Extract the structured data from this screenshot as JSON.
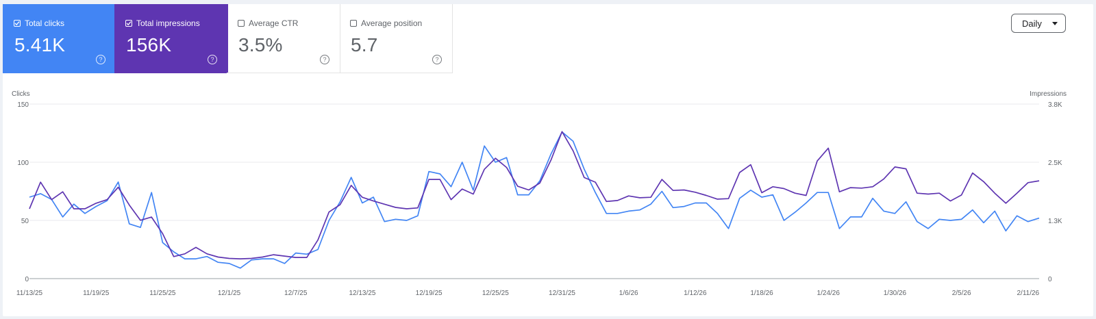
{
  "metrics": [
    {
      "label": "Total clicks",
      "value": "5.41K",
      "checked": true,
      "color": "#4285f4"
    },
    {
      "label": "Total impressions",
      "value": "156K",
      "checked": true,
      "color": "#5e35b1"
    },
    {
      "label": "Average CTR",
      "value": "3.5%",
      "checked": false
    },
    {
      "label": "Average position",
      "value": "5.7",
      "checked": false
    }
  ],
  "granularity": {
    "label": "Daily",
    "icon": "dropdown-caret-icon"
  },
  "help_icon": "help-circle-icon",
  "chart_data": {
    "type": "line",
    "left_axis": {
      "label": "Clicks",
      "ticks": [
        "150",
        "100",
        "50",
        "0"
      ],
      "range": [
        0,
        150
      ]
    },
    "right_axis": {
      "label": "Impressions",
      "ticks": [
        "3.8K",
        "2.5K",
        "1.3K",
        "0"
      ],
      "range": [
        0,
        3800
      ]
    },
    "x_tick_labels": [
      "11/13/25",
      "11/19/25",
      "11/25/25",
      "12/1/25",
      "12/7/25",
      "12/13/25",
      "12/19/25",
      "12/25/25",
      "12/31/25",
      "1/6/26",
      "1/12/26",
      "1/18/26",
      "1/24/26",
      "1/30/26",
      "2/5/26",
      "2/11/26"
    ],
    "series": [
      {
        "name": "Clicks",
        "color": "#4285f4",
        "axis": "left",
        "values": [
          70,
          73,
          68,
          53,
          64,
          56,
          62,
          67,
          83,
          47,
          44,
          74,
          31,
          23,
          17,
          17,
          19,
          14,
          13,
          9,
          16,
          17,
          17,
          13,
          22,
          21,
          25,
          50,
          66,
          87,
          65,
          70,
          49,
          51,
          50,
          54,
          92,
          90,
          79,
          100,
          76,
          114,
          100,
          104,
          72,
          72,
          84,
          107,
          126,
          118,
          94,
          74,
          56,
          56,
          58,
          59,
          64,
          75,
          61,
          62,
          65,
          65,
          56,
          43,
          69,
          76,
          70,
          72,
          50,
          57,
          65,
          74,
          74,
          43,
          53,
          53,
          69,
          58,
          56,
          66,
          49,
          43,
          51,
          50,
          51,
          59,
          48,
          58,
          41,
          54,
          49,
          52
        ],
        "note": "Daily clicks; points estimated from the plot"
      },
      {
        "name": "Impressions",
        "color": "#5e35b1",
        "axis": "right",
        "values": [
          1520,
          2100,
          1720,
          1890,
          1520,
          1520,
          1640,
          1720,
          1990,
          1600,
          1270,
          1340,
          980,
          480,
          540,
          680,
          540,
          470,
          440,
          430,
          440,
          470,
          520,
          490,
          460,
          460,
          840,
          1450,
          1610,
          2030,
          1770,
          1690,
          1620,
          1550,
          1520,
          1540,
          2160,
          2160,
          1720,
          1950,
          1840,
          2380,
          2620,
          2420,
          2010,
          1930,
          2080,
          2580,
          3200,
          2780,
          2200,
          2100,
          1680,
          1700,
          1800,
          1760,
          1770,
          2160,
          1920,
          1930,
          1880,
          1810,
          1730,
          1740,
          2310,
          2480,
          1870,
          2000,
          1960,
          1860,
          1810,
          2560,
          2840,
          1890,
          1980,
          1970,
          2000,
          2170,
          2430,
          2390,
          1860,
          1840,
          1860,
          1690,
          1820,
          2300,
          2110,
          1860,
          1640,
          1860,
          2090,
          2130
        ],
        "note": "Daily impressions; points estimated from the plot"
      }
    ]
  }
}
